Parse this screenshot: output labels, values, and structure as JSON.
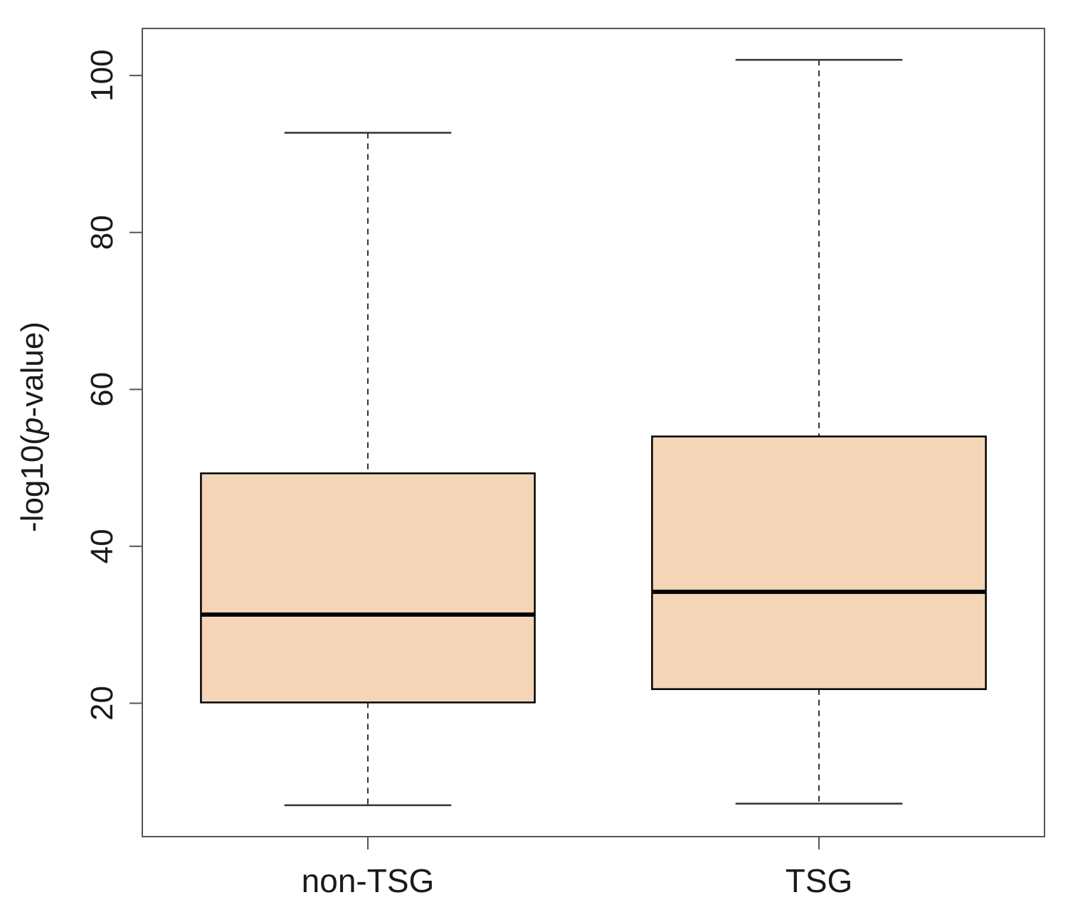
{
  "chart_data": {
    "type": "boxplot",
    "title": "",
    "xlabel": "",
    "ylabel_prefix": "-log10(",
    "ylabel_italic": "p",
    "ylabel_suffix": "-value)",
    "ylim": [
      3,
      106
    ],
    "yticks": [
      20,
      40,
      60,
      80,
      100
    ],
    "ytick_labels": [
      "20",
      "40",
      "60",
      "80",
      "100"
    ],
    "grid": false,
    "box_fill": "#f5d5b8",
    "box_stroke": "#000000",
    "categories": [
      "non-TSG",
      "TSG"
    ],
    "boxes": [
      {
        "category": "non-TSG",
        "whisker_low": 7.0,
        "q1": 20.1,
        "median": 31.3,
        "q3": 49.3,
        "whisker_high": 92.7
      },
      {
        "category": "TSG",
        "whisker_low": 7.2,
        "q1": 21.8,
        "median": 34.2,
        "q3": 54.0,
        "whisker_high": 102.0
      }
    ]
  }
}
